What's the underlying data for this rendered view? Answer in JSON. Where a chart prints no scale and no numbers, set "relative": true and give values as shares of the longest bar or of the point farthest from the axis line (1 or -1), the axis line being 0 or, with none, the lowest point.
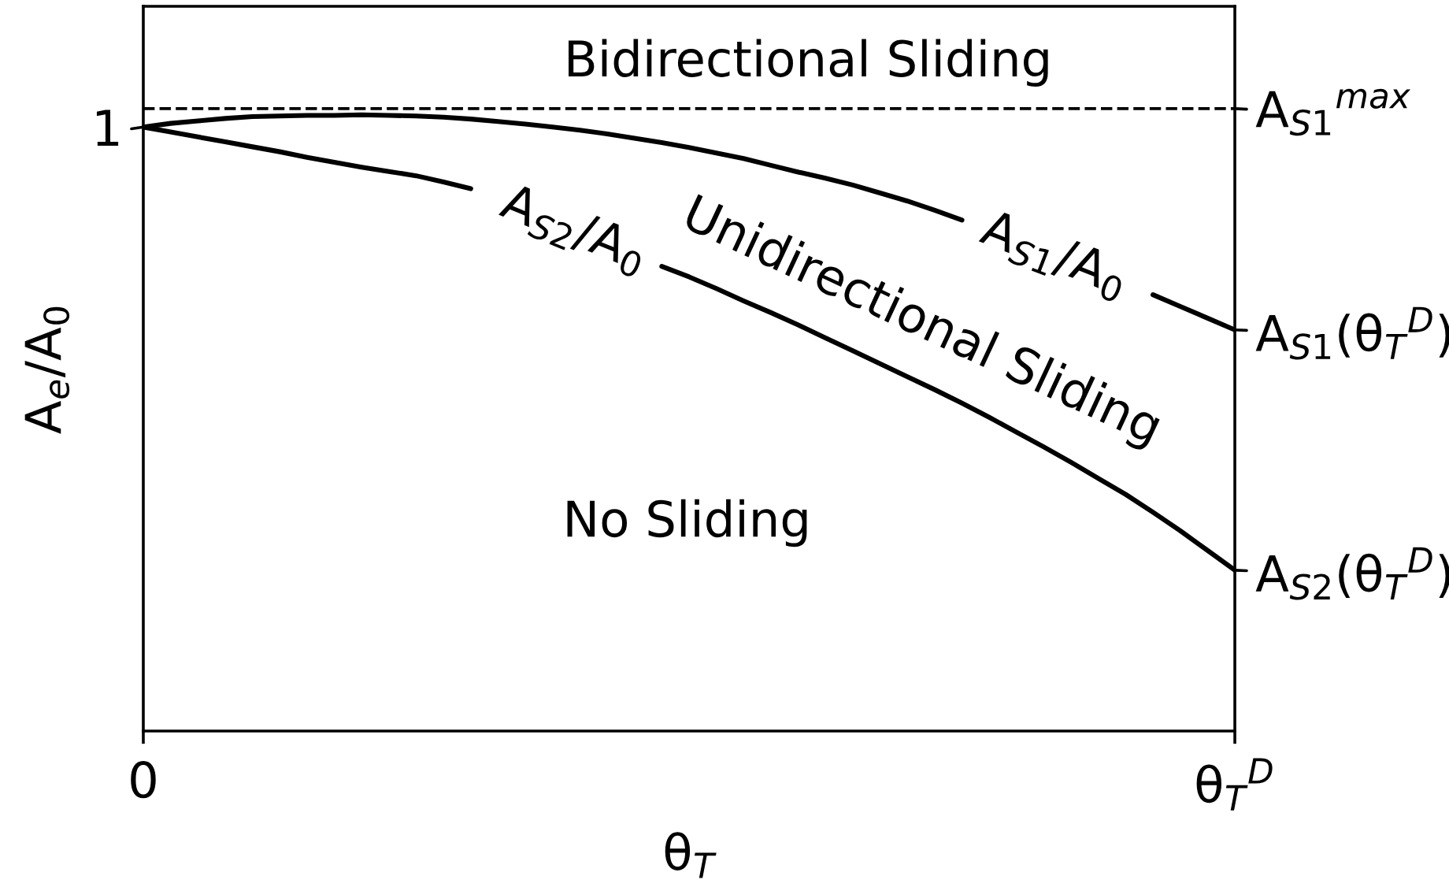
{
  "chart_data": {
    "type": "line",
    "relative": true,
    "xlabel": "θ$_{T}$",
    "ylabel": "A$_{e}$/A$_{0}$",
    "categories": [
      "0",
      null,
      null,
      null,
      null,
      null,
      null,
      null,
      null,
      null,
      null,
      null,
      null,
      null,
      null,
      null,
      null,
      null,
      null,
      null,
      null,
      null,
      null,
      null,
      null,
      null,
      null,
      null,
      null,
      null,
      null,
      null,
      null,
      null,
      null,
      null,
      null,
      null,
      null,
      null,
      "θ$_{T}$$^{D}$"
    ],
    "series": [
      {
        "name": "A$_{S1}$/A$_{0}$",
        "color": "#000000",
        "values": [
          0.98,
          0.986,
          0.99,
          0.994,
          0.997,
          0.998,
          0.999,
          0.999,
          1,
          0.999,
          0.998,
          0.996,
          0.993,
          0.989,
          0.985,
          0.98,
          0.975,
          0.969,
          0.962,
          0.955,
          0.947,
          0.938,
          0.929,
          0.918,
          0.907,
          0.897,
          0.886,
          0.873,
          0.86,
          0.845,
          0.829,
          null,
          null,
          null,
          null,
          null,
          null,
          0.708,
          0.689,
          0.67,
          0.651
        ]
      },
      {
        "name": "A$_{S2}$/A$_{0}$",
        "color": "#000000",
        "values": [
          0.98,
          0.972,
          0.964,
          0.956,
          0.948,
          0.94,
          0.931,
          0.923,
          0.915,
          0.908,
          0.901,
          0.891,
          0.88,
          null,
          null,
          null,
          null,
          null,
          null,
          0.754,
          0.737,
          0.718,
          0.698,
          0.679,
          0.659,
          0.638,
          0.617,
          0.596,
          0.575,
          0.554,
          0.532,
          0.509,
          0.485,
          0.461,
          0.436,
          0.41,
          0.384,
          0.355,
          0.325,
          0.293,
          0.261
        ]
      }
    ],
    "ref_lines": [
      {
        "axis": "y",
        "value": 1.01,
        "label": "A$_{S1}$$^{max}$",
        "color": "#000000",
        "line_style": "dashed"
      }
    ],
    "annotations": [
      "Bidirectional Sliding",
      "Unidirectional Sliding",
      "No Sliding",
      {
        "text": "1",
        "x": "0",
        "y": 0.98
      },
      {
        "text": "A$_{S1}$(θ$_{T}$$^{D}$)",
        "x": "θ$_{T}$$^{D}$",
        "y": 0.651
      },
      {
        "text": "A$_{S2}$(θ$_{T}$$^{D}$)",
        "x": "θ$_{T}$$^{D}$",
        "y": 0.261
      }
    ]
  }
}
